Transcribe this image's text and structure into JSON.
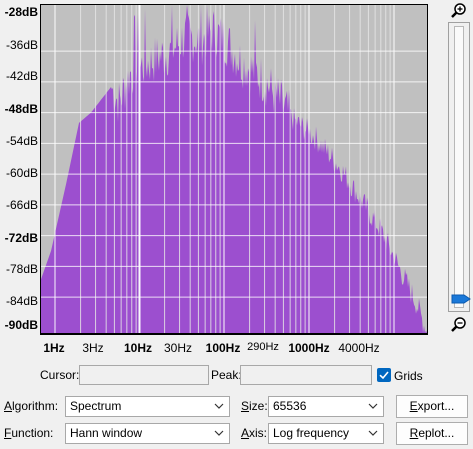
{
  "y_axis": {
    "labels": [
      {
        "text": "-28dB",
        "bold": true
      },
      {
        "text": "-36dB",
        "bold": false
      },
      {
        "text": "-42dB",
        "bold": false
      },
      {
        "text": "-48dB",
        "bold": true
      },
      {
        "text": "-54dB",
        "bold": false
      },
      {
        "text": "-60dB",
        "bold": false
      },
      {
        "text": "-66dB",
        "bold": false
      },
      {
        "text": "-72dB",
        "bold": true
      },
      {
        "text": "-78dB",
        "bold": false
      },
      {
        "text": "-84dB",
        "bold": false
      },
      {
        "text": "-90dB",
        "bold": true
      }
    ]
  },
  "x_axis": {
    "labels": [
      {
        "text": "1Hz",
        "bold": true
      },
      {
        "text": "3Hz",
        "bold": false
      },
      {
        "text": "10Hz",
        "bold": true
      },
      {
        "text": "30Hz",
        "bold": false
      },
      {
        "text": "100Hz",
        "bold": true
      },
      {
        "text": "290Hz",
        "bold": false
      },
      {
        "text": "1000Hz",
        "bold": true
      },
      {
        "text": "4000Hz",
        "bold": false
      }
    ]
  },
  "chart_data": {
    "type": "area",
    "scale": "log-frequency",
    "fill_color": "#9c4fcf",
    "background_color": "#c0c0c0",
    "ylim_db": [
      -91,
      -27
    ],
    "xlim_hz": [
      0.8,
      12000
    ],
    "grid": true
  },
  "cursor": {
    "label": "Cursor:",
    "value": ""
  },
  "peak": {
    "label": "Peak:",
    "value": ""
  },
  "grids": {
    "label": "Grids",
    "checked": true
  },
  "algorithm": {
    "label_prefix": "A",
    "label_rest": "lgorithm:",
    "value": "Spectrum"
  },
  "size": {
    "label_prefix": "S",
    "label_rest": "ize:",
    "value": "65536"
  },
  "function": {
    "label_prefix": "F",
    "label_rest": "unction:",
    "value": "Hann window"
  },
  "axis": {
    "label_prefix": "A",
    "label_rest": "xis:",
    "value": "Log frequency"
  },
  "export_button": {
    "label_prefix": "E",
    "label_rest": "xport..."
  },
  "replot_button": {
    "label_prefix": "R",
    "label_rest": "eplot..."
  }
}
